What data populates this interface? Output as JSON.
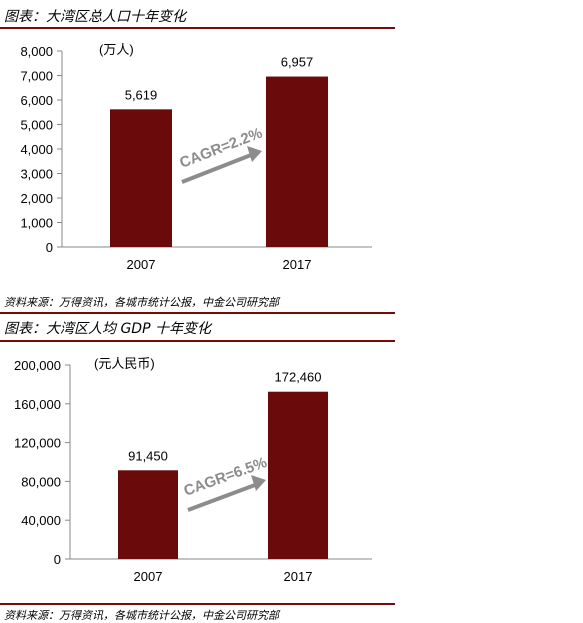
{
  "charts": [
    {
      "figure_title": "图表：大湾区总人口十年变化",
      "source": "资料来源：万得资讯，各城市统计公报，中金公司研究部",
      "cagr_label": "CAGR=2.2%",
      "colors": {
        "bar": "#6b0a0a",
        "arrow": "#8c8c8c",
        "rule": "#7a0a0a"
      },
      "chart_data": {
        "type": "bar",
        "categories": [
          "2007",
          "2017"
        ],
        "values": [
          5619,
          6957
        ],
        "value_labels": [
          "5,619",
          "6,957"
        ],
        "unit": "(万人)",
        "ylim": [
          0,
          8000
        ],
        "yticks": [
          0,
          1000,
          2000,
          3000,
          4000,
          5000,
          6000,
          7000,
          8000
        ],
        "ytick_labels": [
          "0",
          "1,000",
          "2,000",
          "3,000",
          "4,000",
          "5,000",
          "6,000",
          "7,000",
          "8,000"
        ],
        "grid": false
      }
    },
    {
      "figure_title": "图表：大湾区人均 GDP 十年变化",
      "source": "资料来源：万得资讯，各城市统计公报，中金公司研究部",
      "cagr_label": "CAGR=6.5%",
      "colors": {
        "bar": "#6b0a0a",
        "arrow": "#8c8c8c",
        "rule": "#7a0a0a"
      },
      "chart_data": {
        "type": "bar",
        "categories": [
          "2007",
          "2017"
        ],
        "values": [
          91450,
          172460
        ],
        "value_labels": [
          "91,450",
          "172,460"
        ],
        "unit": "(元人民币)",
        "ylim": [
          0,
          200000
        ],
        "yticks": [
          0,
          40000,
          80000,
          120000,
          160000,
          200000
        ],
        "ytick_labels": [
          "0",
          "40,000",
          "80,000",
          "120,000",
          "160,000",
          "200,000"
        ],
        "grid": false
      }
    }
  ]
}
